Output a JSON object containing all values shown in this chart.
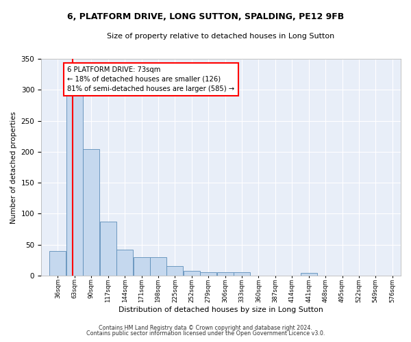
{
  "title": "6, PLATFORM DRIVE, LONG SUTTON, SPALDING, PE12 9FB",
  "subtitle": "Size of property relative to detached houses in Long Sutton",
  "xlabel": "Distribution of detached houses by size in Long Sutton",
  "ylabel": "Number of detached properties",
  "bar_color": "#c5d8ee",
  "bar_edge_color": "#5b8db8",
  "background_color": "#e8eef8",
  "grid_color": "#ffffff",
  "bins": [
    "36sqm",
    "63sqm",
    "90sqm",
    "117sqm",
    "144sqm",
    "171sqm",
    "198sqm",
    "225sqm",
    "252sqm",
    "279sqm",
    "306sqm",
    "333sqm",
    "360sqm",
    "387sqm",
    "414sqm",
    "441sqm",
    "468sqm",
    "495sqm",
    "522sqm",
    "549sqm",
    "576sqm"
  ],
  "values": [
    40,
    291,
    204,
    87,
    42,
    30,
    30,
    15,
    8,
    5,
    5,
    5,
    0,
    0,
    0,
    4,
    0,
    0,
    0,
    0,
    0
  ],
  "bin_edges": [
    36,
    63,
    90,
    117,
    144,
    171,
    198,
    225,
    252,
    279,
    306,
    333,
    360,
    387,
    414,
    441,
    468,
    495,
    522,
    549,
    576
  ],
  "red_line_x": 73,
  "annotation_text": "6 PLATFORM DRIVE: 73sqm\n← 18% of detached houses are smaller (126)\n81% of semi-detached houses are larger (585) →",
  "ylim": [
    0,
    350
  ],
  "yticks": [
    0,
    50,
    100,
    150,
    200,
    250,
    300,
    350
  ],
  "footer1": "Contains HM Land Registry data © Crown copyright and database right 2024.",
  "footer2": "Contains public sector information licensed under the Open Government Licence v3.0."
}
